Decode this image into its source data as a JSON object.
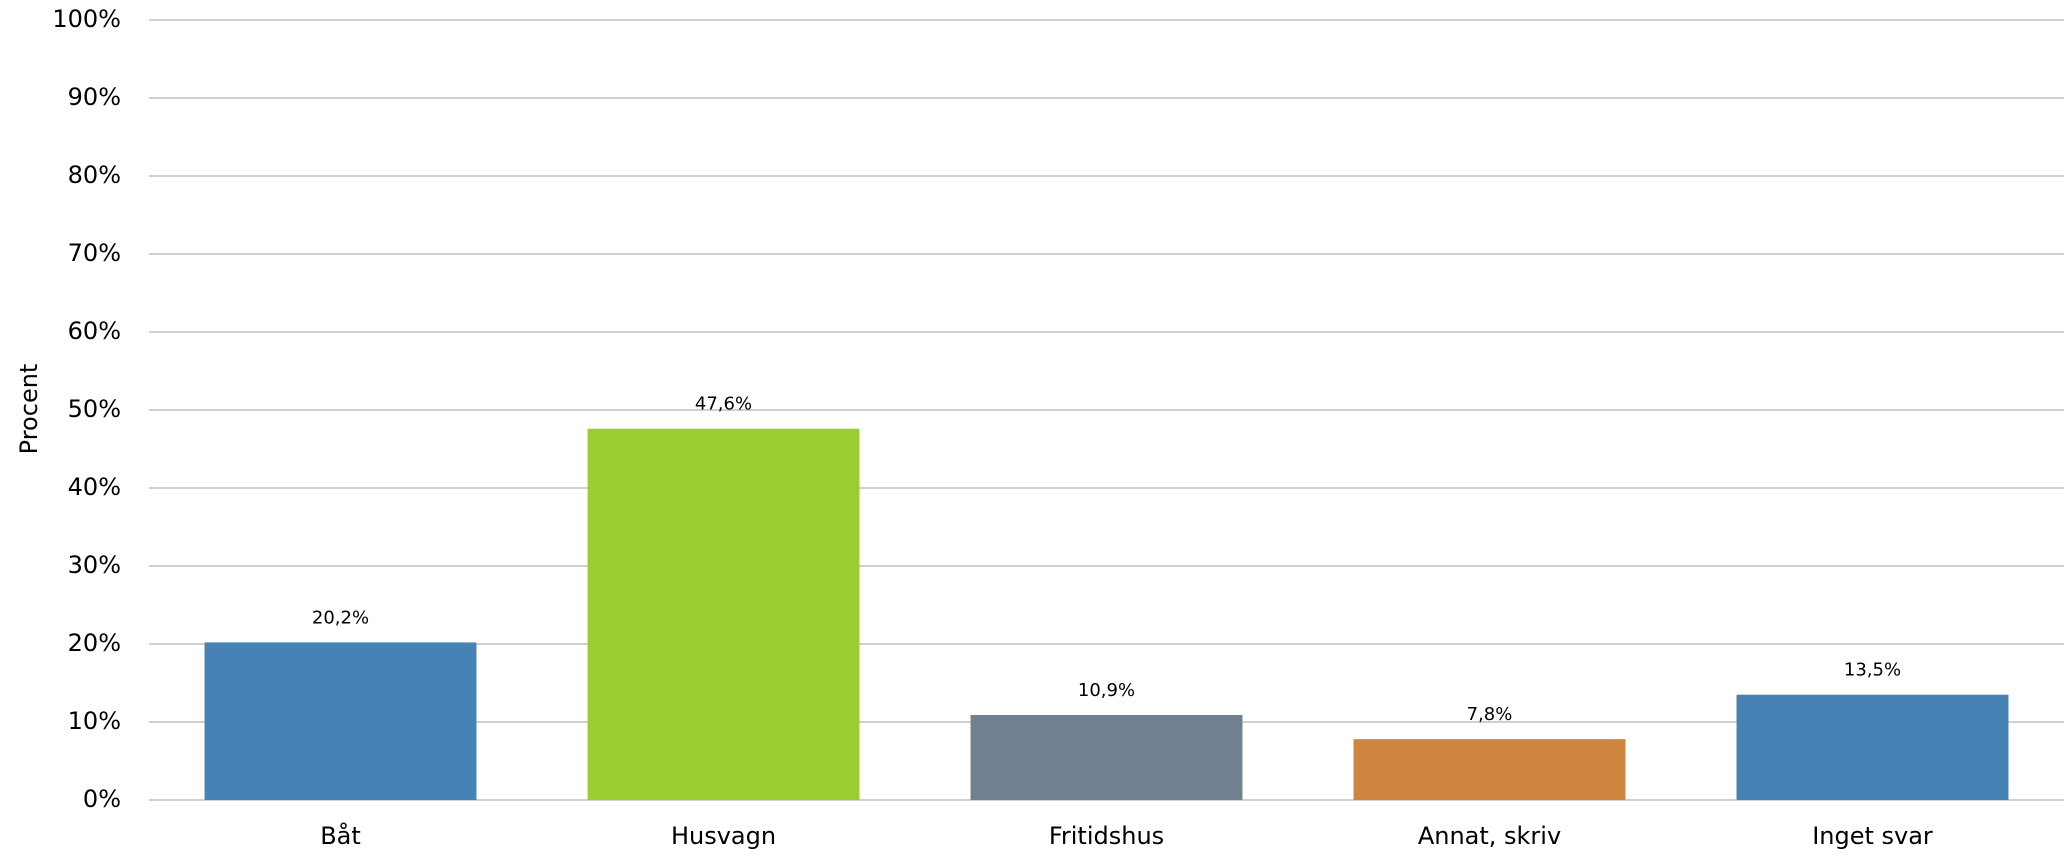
{
  "chart_data": {
    "type": "bar",
    "y_label": "Procent",
    "categories": [
      "Båt",
      "Husvagn",
      "Fritidshus",
      "Annat, skriv",
      "Inget svar"
    ],
    "values": [
      20.2,
      47.6,
      10.9,
      7.8,
      13.5
    ],
    "value_labels": [
      "20,2%",
      "47,6%",
      "10,9%",
      "7,8%",
      "13,5%"
    ],
    "colors": [
      "#4682b4",
      "#9acd32",
      "#708090",
      "#cd853f",
      "#4682b4"
    ],
    "ylim": [
      0,
      100
    ],
    "yticks": [
      {
        "value": 0,
        "label": "0%"
      },
      {
        "value": 10,
        "label": "10%"
      },
      {
        "value": 20,
        "label": "20%"
      },
      {
        "value": 30,
        "label": "30%"
      },
      {
        "value": 40,
        "label": "40%"
      },
      {
        "value": 50,
        "label": "50%"
      },
      {
        "value": 60,
        "label": "60%"
      },
      {
        "value": 70,
        "label": "70%"
      },
      {
        "value": 80,
        "label": "80%"
      },
      {
        "value": 90,
        "label": "90%"
      },
      {
        "value": 100,
        "label": "100%"
      }
    ],
    "grid": true
  }
}
